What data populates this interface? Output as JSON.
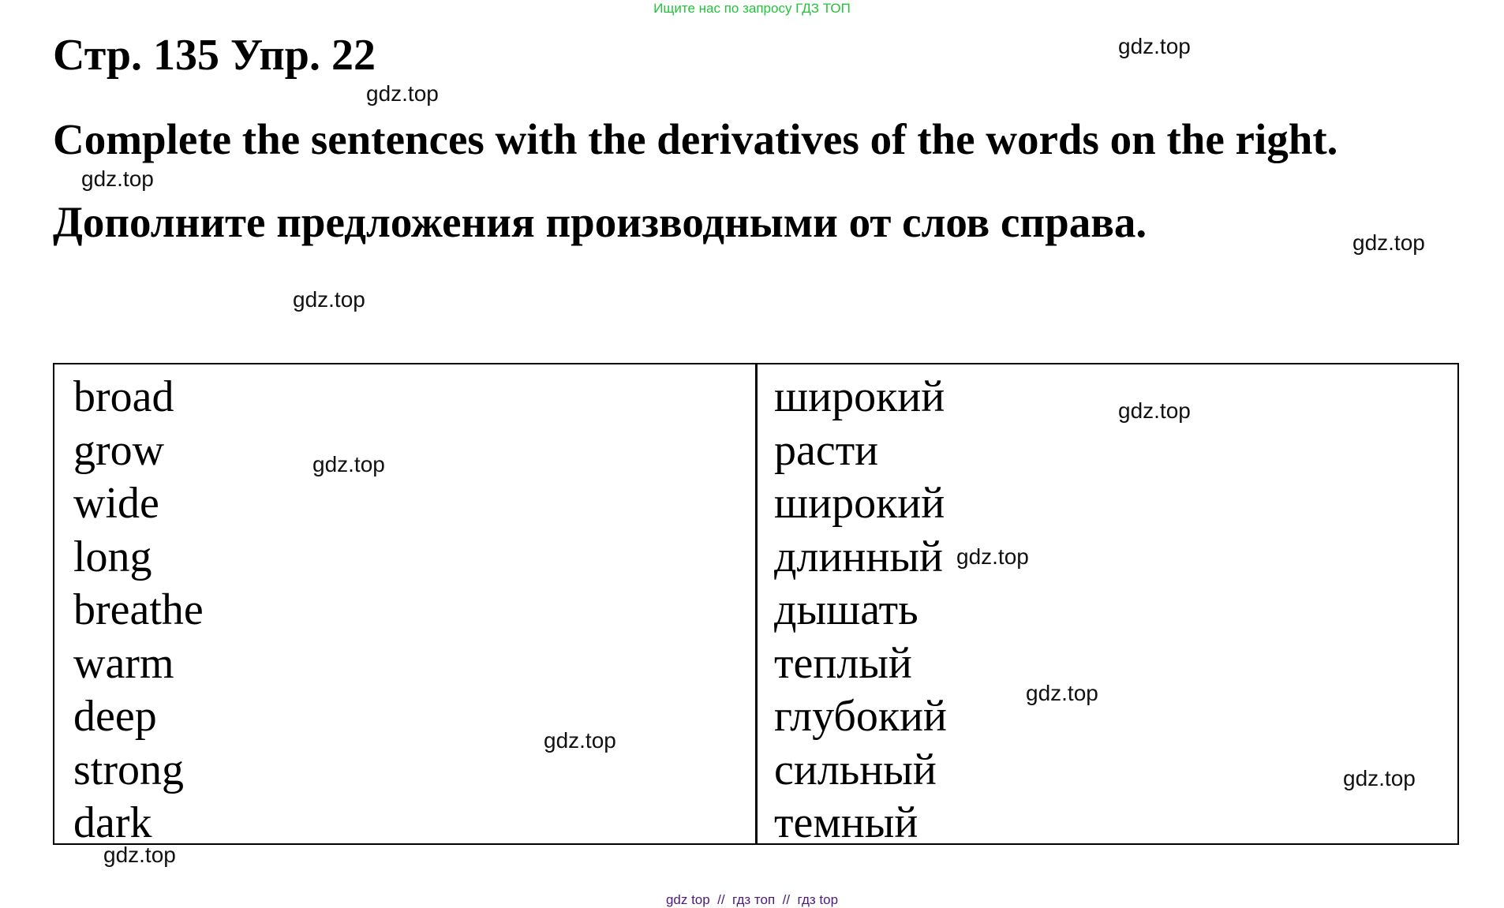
{
  "banner": "Ищите нас по запросу ГДЗ ТОП",
  "title": "Стр. 135 Упр. 22",
  "instruction_en": "Complete the sentences with the derivatives of the words on the right.",
  "instruction_ru": "Дополните предложения производными от слов справа.",
  "table": {
    "english": [
      "broad",
      "grow",
      "wide",
      "long",
      "breathe",
      "warm",
      "deep",
      "strong",
      "dark"
    ],
    "russian": [
      "широкий",
      "расти",
      "широкий",
      "длинный",
      "дышать",
      "теплый",
      "глубокий",
      "сильный",
      "темный"
    ]
  },
  "watermark": "gdz.top",
  "footer": "gdz top  //  гдз топ  //  гдз top"
}
